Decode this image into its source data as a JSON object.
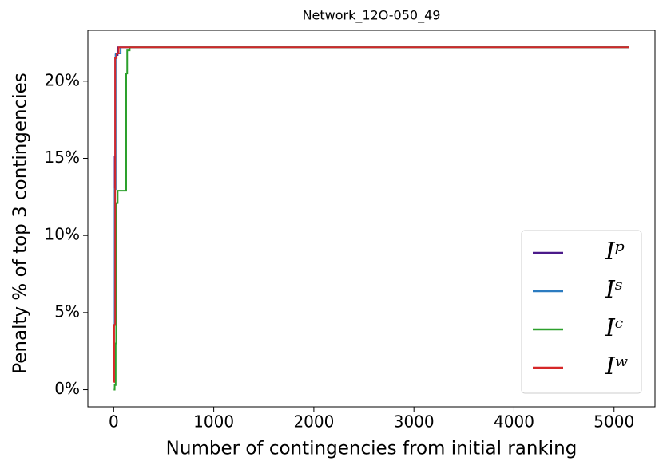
{
  "chart_data": {
    "type": "line",
    "step": true,
    "title": "Network_12O-050_49",
    "xlabel": "Number of contingencies from initial ranking",
    "ylabel": "Penalty % of top 3 contingencies",
    "xlim": [
      -258,
      5409
    ],
    "ylim": [
      -1.11,
      23.3
    ],
    "xticks": [
      0,
      1000,
      2000,
      3000,
      4000,
      5000
    ],
    "yticks": [
      {
        "value": 0,
        "label": "0%"
      },
      {
        "value": 5,
        "label": "5%"
      },
      {
        "value": 10,
        "label": "10%"
      },
      {
        "value": 15,
        "label": "15%"
      },
      {
        "value": 20,
        "label": "20%"
      }
    ],
    "legend": "lower right",
    "series": [
      {
        "name": "Iᵖ",
        "color": "#4b1a8a",
        "x": [
          0,
          10,
          10,
          15,
          15,
          20,
          20,
          40,
          40,
          5151
        ],
        "values": [
          4.2,
          4.2,
          15.1,
          15.1,
          21.5,
          21.5,
          21.7,
          21.7,
          22.2,
          22.2
        ]
      },
      {
        "name": "Iˢ",
        "color": "#2b7bc0",
        "x": [
          0,
          10,
          10,
          20,
          20,
          70,
          70,
          5151
        ],
        "values": [
          4.2,
          4.2,
          13,
          13,
          21.8,
          21.8,
          22.2,
          22.2
        ]
      },
      {
        "name": "Iᶜ",
        "color": "#2ca02c",
        "x": [
          0,
          10,
          10,
          20,
          20,
          25,
          25,
          40,
          40,
          125,
          125,
          135,
          135,
          160,
          160,
          5151
        ],
        "values": [
          0,
          0,
          0.3,
          0.3,
          3,
          3,
          12.1,
          12.1,
          12.9,
          12.9,
          20.5,
          20.5,
          22,
          22,
          22.2,
          22.2
        ]
      },
      {
        "name": "Iʷ",
        "color": "#d62728",
        "x": [
          0,
          5,
          5,
          15,
          15,
          30,
          30,
          50,
          50,
          5151
        ],
        "values": [
          0.5,
          0.5,
          4.2,
          4.2,
          21.5,
          21.5,
          21.8,
          21.8,
          22.2,
          22.2
        ]
      }
    ]
  }
}
